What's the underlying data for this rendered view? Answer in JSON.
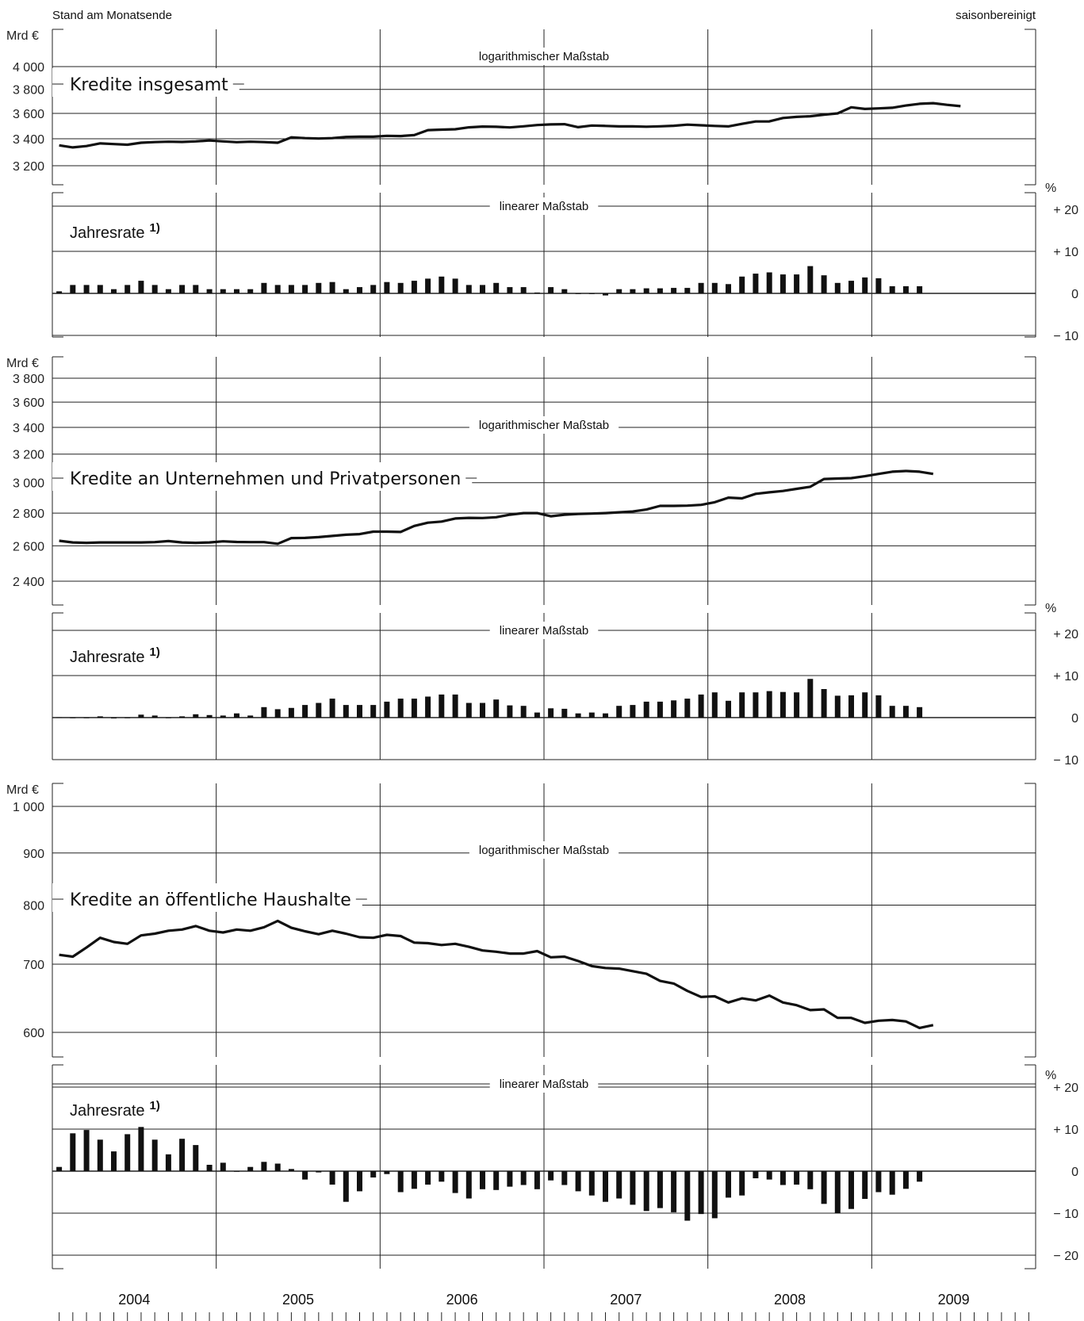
{
  "header": {
    "left": "Stand am Monatsende",
    "right": "saisonbereinigt"
  },
  "scale_labels": {
    "log": "logarithmischer Maßstab",
    "linear": "linearer Maßstab"
  },
  "units": {
    "level": "Mrd €",
    "rate": "%"
  },
  "rate_label": "Jahresrate",
  "rate_footnote": "1)",
  "rate_ticks": [
    "+ 20",
    "+ 10",
    "0",
    "− 10",
    "− 20"
  ],
  "chart_data": [
    {
      "type": "line",
      "title": "Kredite insgesamt",
      "scale": "log",
      "ylabel": "Mrd €",
      "ylim": [
        3100,
        4300
      ],
      "yticks": [
        3200,
        3400,
        3600,
        3800,
        4000
      ],
      "ytick_labels": [
        "3 200",
        "3 400",
        "3 600",
        "3 800",
        "4 000"
      ],
      "x_start": "2004-01",
      "values": [
        3350,
        3335,
        3345,
        3365,
        3360,
        3355,
        3370,
        3375,
        3378,
        3376,
        3380,
        3387,
        3380,
        3374,
        3378,
        3375,
        3370,
        3411,
        3405,
        3402,
        3405,
        3414,
        3416,
        3416,
        3423,
        3421,
        3428,
        3467,
        3471,
        3474,
        3489,
        3495,
        3493,
        3488,
        3497,
        3507,
        3512,
        3514,
        3490,
        3503,
        3500,
        3496,
        3496,
        3494,
        3497,
        3501,
        3510,
        3505,
        3500,
        3496,
        3516,
        3535,
        3536,
        3563,
        3572,
        3577,
        3590,
        3600,
        3650,
        3636,
        3641,
        3646,
        3664,
        3679,
        3684,
        3670,
        3659
      ]
    },
    {
      "type": "bar",
      "title": "Jahresrate",
      "scale": "linear",
      "ylabel": "%",
      "ylim": [
        -10,
        20
      ],
      "yticks": [
        -10,
        0,
        10,
        20
      ],
      "x_start": "2004-01",
      "values": [
        0.5,
        2.0,
        2.0,
        2.0,
        1.0,
        2.0,
        3.0,
        2.0,
        1.0,
        2.0,
        2.0,
        1.0,
        1.0,
        1.0,
        1.0,
        2.5,
        2.0,
        2.0,
        2.0,
        2.5,
        2.7,
        1.0,
        1.5,
        2.0,
        2.7,
        2.5,
        3.0,
        3.5,
        4.0,
        3.5,
        2.0,
        2.0,
        2.5,
        1.5,
        1.5,
        0.2,
        1.5,
        1.0,
        0.0,
        0.0,
        -0.5,
        1.0,
        1.0,
        1.2,
        1.2,
        1.3,
        1.3,
        2.5,
        2.5,
        2.2,
        4.0,
        4.7,
        5.0,
        4.5,
        4.5,
        6.5,
        4.3,
        2.5,
        3.0,
        3.8,
        3.6,
        1.7,
        1.7,
        1.7
      ]
    },
    {
      "type": "line",
      "title": "Kredite an Unternehmen und Privatpersonen",
      "scale": "log",
      "ylabel": "Mrd €",
      "ylim": [
        2330,
        3870
      ],
      "yticks": [
        2400,
        2600,
        2800,
        3000,
        3200,
        3400,
        3600,
        3800
      ],
      "ytick_labels": [
        "2 400",
        "2 600",
        "2 800",
        "3 000",
        "3 200",
        "3 400",
        "3 600",
        "3 800"
      ],
      "x_start": "2004-01",
      "values": [
        2630,
        2620,
        2618,
        2620,
        2620,
        2620,
        2620,
        2622,
        2628,
        2620,
        2618,
        2620,
        2627,
        2623,
        2622,
        2622,
        2612,
        2646,
        2647,
        2652,
        2659,
        2666,
        2670,
        2685,
        2685,
        2683,
        2720,
        2740,
        2747,
        2766,
        2770,
        2769,
        2774,
        2790,
        2800,
        2800,
        2780,
        2790,
        2795,
        2797,
        2800,
        2805,
        2810,
        2823,
        2846,
        2846,
        2848,
        2853,
        2870,
        2900,
        2895,
        2925,
        2935,
        2944,
        2958,
        2972,
        3025,
        3028,
        3031,
        3044,
        3060,
        3075,
        3080,
        3075,
        3060
      ]
    },
    {
      "type": "bar",
      "title": "Jahresrate",
      "scale": "linear",
      "ylabel": "%",
      "ylim": [
        -10,
        20
      ],
      "yticks": [
        -10,
        0,
        10,
        20
      ],
      "x_start": "2004-01",
      "values": [
        0.1,
        0.0,
        0.0,
        0.3,
        -0.2,
        0.0,
        0.7,
        0.5,
        0.0,
        0.3,
        0.8,
        0.6,
        0.5,
        1.0,
        0.5,
        2.5,
        2.0,
        2.3,
        3.0,
        3.5,
        4.5,
        3.0,
        3.0,
        3.0,
        3.8,
        4.5,
        4.5,
        5.0,
        5.5,
        5.5,
        3.5,
        3.5,
        4.3,
        2.9,
        2.8,
        1.2,
        2.2,
        2.1,
        1.0,
        1.2,
        1.0,
        2.8,
        3.0,
        3.8,
        3.8,
        4.1,
        4.5,
        5.5,
        6.0,
        4.0,
        6.0,
        6.0,
        6.3,
        6.1,
        6.0,
        9.2,
        6.8,
        5.2,
        5.3,
        6.0,
        5.3,
        2.8,
        2.8,
        2.5
      ]
    },
    {
      "type": "line",
      "title": "Kredite an öffentliche Haushalte",
      "scale": "log",
      "ylabel": "Mrd €",
      "ylim": [
        570,
        1025
      ],
      "yticks": [
        600,
        700,
        800,
        900,
        1000
      ],
      "ytick_labels": [
        "600",
        "700",
        "800",
        "900",
        "1 000"
      ],
      "x_start": "2004-01",
      "values": [
        715,
        712,
        727,
        743,
        736,
        733,
        747,
        750,
        755,
        757,
        763,
        755,
        752,
        757,
        755,
        761,
        772,
        760,
        754,
        749,
        755,
        750,
        744,
        743,
        748,
        746,
        735,
        734,
        731,
        733,
        728,
        722,
        720,
        717,
        717,
        721,
        711,
        712,
        705,
        697,
        694,
        693,
        689,
        685,
        674,
        670,
        659,
        650,
        651,
        642,
        648,
        645,
        652,
        642,
        638,
        631,
        632,
        620,
        620,
        613,
        616,
        617,
        615,
        606,
        610
      ]
    },
    {
      "type": "bar",
      "title": "Jahresrate",
      "scale": "linear",
      "ylabel": "%",
      "ylim": [
        -20,
        20
      ],
      "yticks": [
        -20,
        -10,
        0,
        10,
        20
      ],
      "x_start": "2004-01",
      "values": [
        1.0,
        9.0,
        9.8,
        7.5,
        4.7,
        8.8,
        10.5,
        7.5,
        4.0,
        7.7,
        6.2,
        1.5,
        2.0,
        0.0,
        1.0,
        2.2,
        1.8,
        0.5,
        -2.0,
        -0.3,
        -3.2,
        -7.3,
        -4.8,
        -1.5,
        -0.7,
        -5.0,
        -4.2,
        -3.2,
        -2.5,
        -5.2,
        -6.5,
        -4.3,
        -4.5,
        -3.7,
        -3.3,
        -4.3,
        -2.2,
        -3.3,
        -4.8,
        -5.8,
        -7.3,
        -6.5,
        -8.0,
        -9.5,
        -8.8,
        -9.8,
        -11.8,
        -10.2,
        -11.2,
        -6.3,
        -5.8,
        -1.7,
        -2.0,
        -3.3,
        -3.2,
        -4.3,
        -7.8,
        -10.0,
        -9.0,
        -6.6,
        -5.0,
        -5.6,
        -4.2,
        -2.5
      ]
    }
  ],
  "x_axis": {
    "years": [
      "2004",
      "2005",
      "2006",
      "2007",
      "2008",
      "2009"
    ]
  }
}
